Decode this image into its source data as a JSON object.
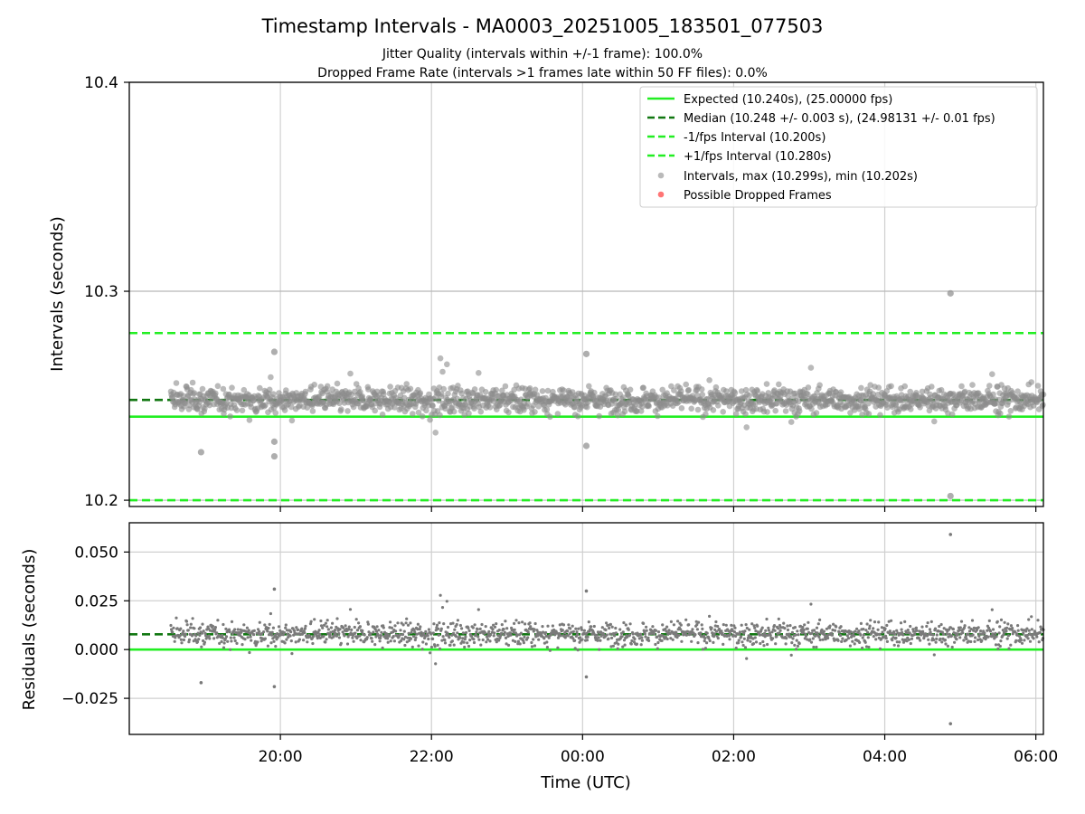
{
  "chart_data": [
    {
      "type": "scatter",
      "title": "Timestamp Intervals - MA0003_20251005_183501_077503",
      "subtitle_lines": [
        "Jitter Quality (intervals within +/-1 frame): 100.0%",
        "Dropped Frame Rate (intervals >1 frames late within 50 FF files): 0.0%"
      ],
      "ylabel": "Intervals (seconds)",
      "ylim": [
        10.197,
        10.4
      ],
      "y_ticks": [
        10.2,
        10.3,
        10.4
      ],
      "y_tick_labels": [
        "10.2",
        "10.3",
        "10.4"
      ],
      "x_range_hours": [
        18.0,
        30.1
      ],
      "x_ticks_hours": [
        20,
        22,
        24,
        26,
        28,
        30
      ],
      "grid": true,
      "legend_position": "upper-right",
      "reference_lines": [
        {
          "name": "Expected (10.240s), (25.00000 fps)",
          "y": 10.24,
          "style": "solid",
          "color": "#22ee22"
        },
        {
          "name": "Median (10.248 +/- 0.003 s), (24.98131 +/- 0.01 fps)",
          "y": 10.248,
          "style": "dashed",
          "color": "#117711"
        },
        {
          "name": "-1/fps Interval (10.200s)",
          "y": 10.2,
          "style": "dashed",
          "color": "#22ee22"
        },
        {
          "name": "+1/fps Interval (10.280s)",
          "y": 10.28,
          "style": "dashed",
          "color": "#22ee22"
        }
      ],
      "series": [
        {
          "name": "Intervals, max (10.299s), min (10.202s)",
          "color": "#8c8c8c",
          "x_start_hours": 18.55,
          "x_end_hours": 30.1,
          "center": 10.248,
          "spread": 0.003,
          "notable_points": [
            {
              "x": 28.87,
              "y": 10.299
            },
            {
              "x": 28.87,
              "y": 10.202
            },
            {
              "x": 19.92,
              "y": 10.271
            },
            {
              "x": 19.92,
              "y": 10.221
            },
            {
              "x": 19.92,
              "y": 10.228
            },
            {
              "x": 24.05,
              "y": 10.27
            },
            {
              "x": 24.05,
              "y": 10.226
            },
            {
              "x": 18.95,
              "y": 10.223
            }
          ]
        },
        {
          "name": "Possible Dropped Frames",
          "color": "#ff6666",
          "points": []
        }
      ]
    },
    {
      "type": "scatter",
      "xlabel": "Time (UTC)",
      "ylabel": "Residuals (seconds)",
      "ylim": [
        -0.0435,
        0.065
      ],
      "y_ticks": [
        -0.025,
        0.0,
        0.025,
        0.05
      ],
      "y_tick_labels": [
        "−0.025",
        "0.000",
        "0.025",
        "0.050"
      ],
      "x_tick_labels": [
        "20:00",
        "22:00",
        "00:00",
        "02:00",
        "04:00",
        "06:00"
      ],
      "grid": true,
      "reference_lines": [
        {
          "y": 0.0,
          "style": "solid",
          "color": "#22ee22"
        },
        {
          "y": 0.0078,
          "style": "dashed",
          "color": "#117711"
        }
      ],
      "series": [
        {
          "color": "#7a7a7a",
          "center": 0.008,
          "spread": 0.003,
          "notable_points": [
            {
              "x": 28.87,
              "y": 0.059
            },
            {
              "x": 28.87,
              "y": -0.038
            },
            {
              "x": 19.92,
              "y": 0.031
            },
            {
              "x": 19.92,
              "y": -0.019
            },
            {
              "x": 24.05,
              "y": 0.03
            },
            {
              "x": 24.05,
              "y": -0.014
            },
            {
              "x": 18.95,
              "y": -0.017
            }
          ]
        }
      ]
    }
  ]
}
